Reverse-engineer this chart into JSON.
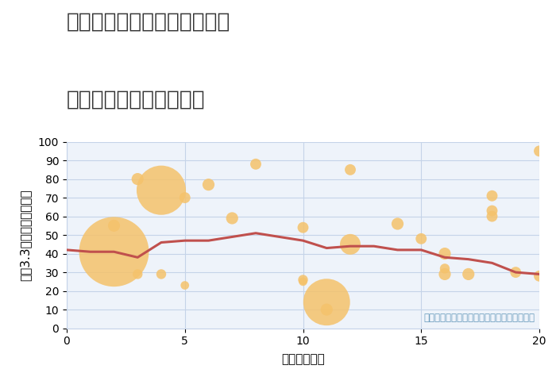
{
  "title_line1": "兵庫県たつの市御津町中島の",
  "title_line2": "駅距離別中古戸建て価格",
  "xlabel": "駅距離（分）",
  "ylabel": "坪（3.3㎡）単価（万円）",
  "annotation": "円の大きさは、取引のあった物件面積を示す",
  "scatter_x": [
    2,
    2,
    3,
    3,
    4,
    4,
    5,
    5,
    6,
    7,
    8,
    10,
    10,
    10,
    11,
    11,
    12,
    12,
    14,
    15,
    16,
    16,
    16,
    17,
    18,
    18,
    18,
    19,
    20,
    20
  ],
  "scatter_y": [
    55,
    41,
    80,
    29,
    74,
    29,
    70,
    23,
    77,
    59,
    88,
    54,
    26,
    25,
    14,
    10,
    85,
    45,
    56,
    48,
    40,
    32,
    29,
    29,
    71,
    63,
    60,
    30,
    95,
    28
  ],
  "scatter_size": [
    120,
    4000,
    120,
    80,
    2000,
    80,
    100,
    60,
    120,
    120,
    100,
    100,
    80,
    60,
    1800,
    120,
    100,
    350,
    120,
    100,
    120,
    80,
    120,
    120,
    100,
    100,
    100,
    100,
    100,
    100
  ],
  "line_x": [
    0,
    1,
    2,
    3,
    4,
    5,
    6,
    7,
    8,
    9,
    10,
    11,
    12,
    13,
    14,
    15,
    16,
    17,
    18,
    19,
    20
  ],
  "line_y": [
    42,
    41,
    41,
    38,
    46,
    47,
    47,
    49,
    51,
    49,
    47,
    43,
    44,
    44,
    42,
    42,
    38,
    37,
    35,
    30,
    29
  ],
  "scatter_color": "#F5C26B",
  "scatter_alpha": 0.85,
  "line_color": "#C0504D",
  "line_width": 2.2,
  "bg_color": "#EEF3FA",
  "grid_color": "#C5D3E8",
  "xlim": [
    0,
    20
  ],
  "ylim": [
    0,
    100
  ],
  "xticks": [
    0,
    5,
    10,
    15,
    20
  ],
  "yticks": [
    0,
    10,
    20,
    30,
    40,
    50,
    60,
    70,
    80,
    90,
    100
  ],
  "title_fontsize": 19,
  "axis_label_fontsize": 11,
  "tick_fontsize": 10,
  "annotation_fontsize": 8.5,
  "annotation_color": "#6699BB"
}
